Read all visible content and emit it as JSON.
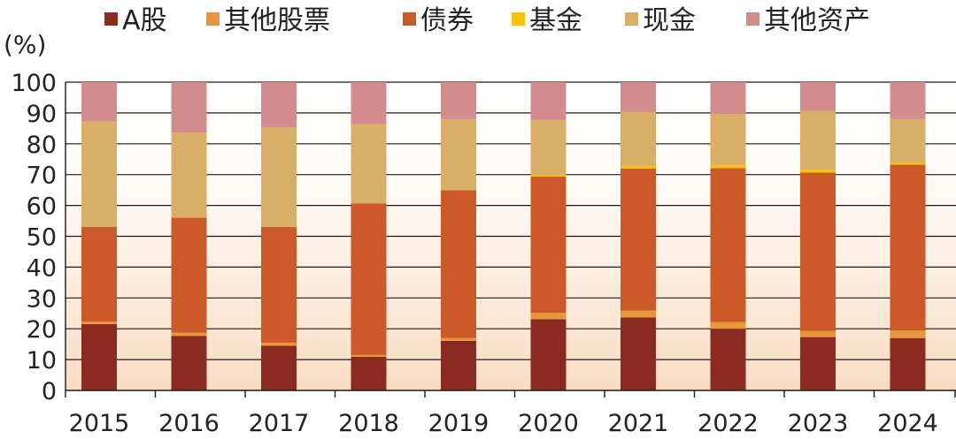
{
  "chart_data": {
    "type": "bar",
    "stacked": true,
    "ylabel": "(%)",
    "ylim": [
      0,
      100
    ],
    "yticks": [
      "100",
      "90",
      "80",
      "70",
      "60",
      "50",
      "40",
      "30",
      "20",
      "10",
      "0"
    ],
    "grid": true,
    "legend_position": "top",
    "categories": [
      "2015",
      "2016",
      "2017",
      "2018",
      "2019",
      "2020",
      "2021",
      "2022",
      "2023",
      "2024"
    ],
    "series": [
      {
        "name": "A股",
        "color": "#8b2a20",
        "values": [
          21.5,
          17.7,
          14.5,
          10.9,
          16.1,
          23.1,
          23.7,
          20.0,
          17.3,
          17.0
        ]
      },
      {
        "name": "其他股票",
        "color": "#e8963c",
        "values": [
          0.8,
          1.0,
          1.0,
          0.6,
          0.9,
          2.1,
          2.2,
          2.2,
          2.0,
          2.4
        ]
      },
      {
        "name": "债券",
        "color": "#cb5a28",
        "values": [
          30.7,
          37.3,
          37.5,
          49.1,
          47.9,
          44.2,
          46.1,
          49.9,
          51.4,
          53.8
        ]
      },
      {
        "name": "基金",
        "color": "#f7c300",
        "values": [
          0.0,
          0.0,
          0.0,
          0.0,
          0.0,
          0.5,
          0.8,
          0.9,
          0.9,
          0.6
        ]
      },
      {
        "name": "现金",
        "color": "#d9ae66",
        "values": [
          34.2,
          27.6,
          32.4,
          25.8,
          23.1,
          17.8,
          17.6,
          16.7,
          19.0,
          14.2
        ]
      },
      {
        "name": "其他资产",
        "color": "#d38c8c",
        "values": [
          12.8,
          16.4,
          14.6,
          13.6,
          12.0,
          12.3,
          9.6,
          10.3,
          9.4,
          12.0
        ]
      }
    ]
  }
}
